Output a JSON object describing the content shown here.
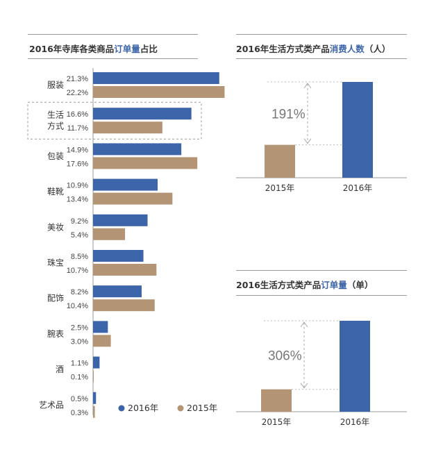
{
  "colors": {
    "y2016": "#3c64a8",
    "y2015": "#b39474"
  },
  "chart_data": [
    {
      "type": "bar",
      "orientation": "horizontal",
      "title_prefix": "2016年寺库各类商品",
      "title_highlight": "订单量",
      "title_suffix": "占比",
      "categories": [
        "服装",
        "生活方式",
        "包装",
        "鞋靴",
        "美妆",
        "珠宝",
        "配饰",
        "腕表",
        "酒",
        "艺术品"
      ],
      "category_lines": [
        [
          "服装"
        ],
        [
          "生活",
          "方式"
        ],
        [
          "包装"
        ],
        [
          "鞋靴"
        ],
        [
          "美妆"
        ],
        [
          "珠宝"
        ],
        [
          "配饰"
        ],
        [
          "腕表"
        ],
        [
          "酒"
        ],
        [
          "艺术品"
        ]
      ],
      "unit": "%",
      "xlim": [
        0,
        22.5
      ],
      "series": [
        {
          "name": "2016年",
          "values": [
            21.3,
            16.6,
            14.9,
            10.9,
            9.2,
            8.5,
            8.2,
            2.5,
            1.1,
            0.5
          ],
          "labels": [
            "21.3%",
            "16.6%",
            "14.9%",
            "10.9%",
            "9.2%",
            "8.5%",
            "8.2%",
            "2.5%",
            "1.1%",
            "0.5%"
          ]
        },
        {
          "name": "2015年",
          "values": [
            22.2,
            11.7,
            17.6,
            13.4,
            5.4,
            10.7,
            10.4,
            3.0,
            0.1,
            0.3
          ],
          "labels": [
            "22.2%",
            "11.7%",
            "17.6%",
            "13.4%",
            "5.4%",
            "10.7%",
            "10.4%",
            "3.0%",
            "0.1%",
            "0.3%"
          ]
        }
      ],
      "highlighted_category": "生活方式",
      "legend": [
        "2016年",
        "2015年"
      ],
      "legend_position": "bottom-right"
    },
    {
      "type": "bar",
      "title_prefix": "2016年生活方式类产品",
      "title_highlight": "消费人数",
      "title_suffix": "（人）",
      "categories": [
        "2015年",
        "2016年"
      ],
      "values": [
        1,
        2.91
      ],
      "growth_label": "191%"
    },
    {
      "type": "bar",
      "title_prefix": "2016生活方式类产品",
      "title_highlight": "订单量",
      "title_suffix": "（单）",
      "categories": [
        "2015年",
        "2016年"
      ],
      "values": [
        1,
        4.06
      ],
      "growth_label": "306%"
    }
  ]
}
